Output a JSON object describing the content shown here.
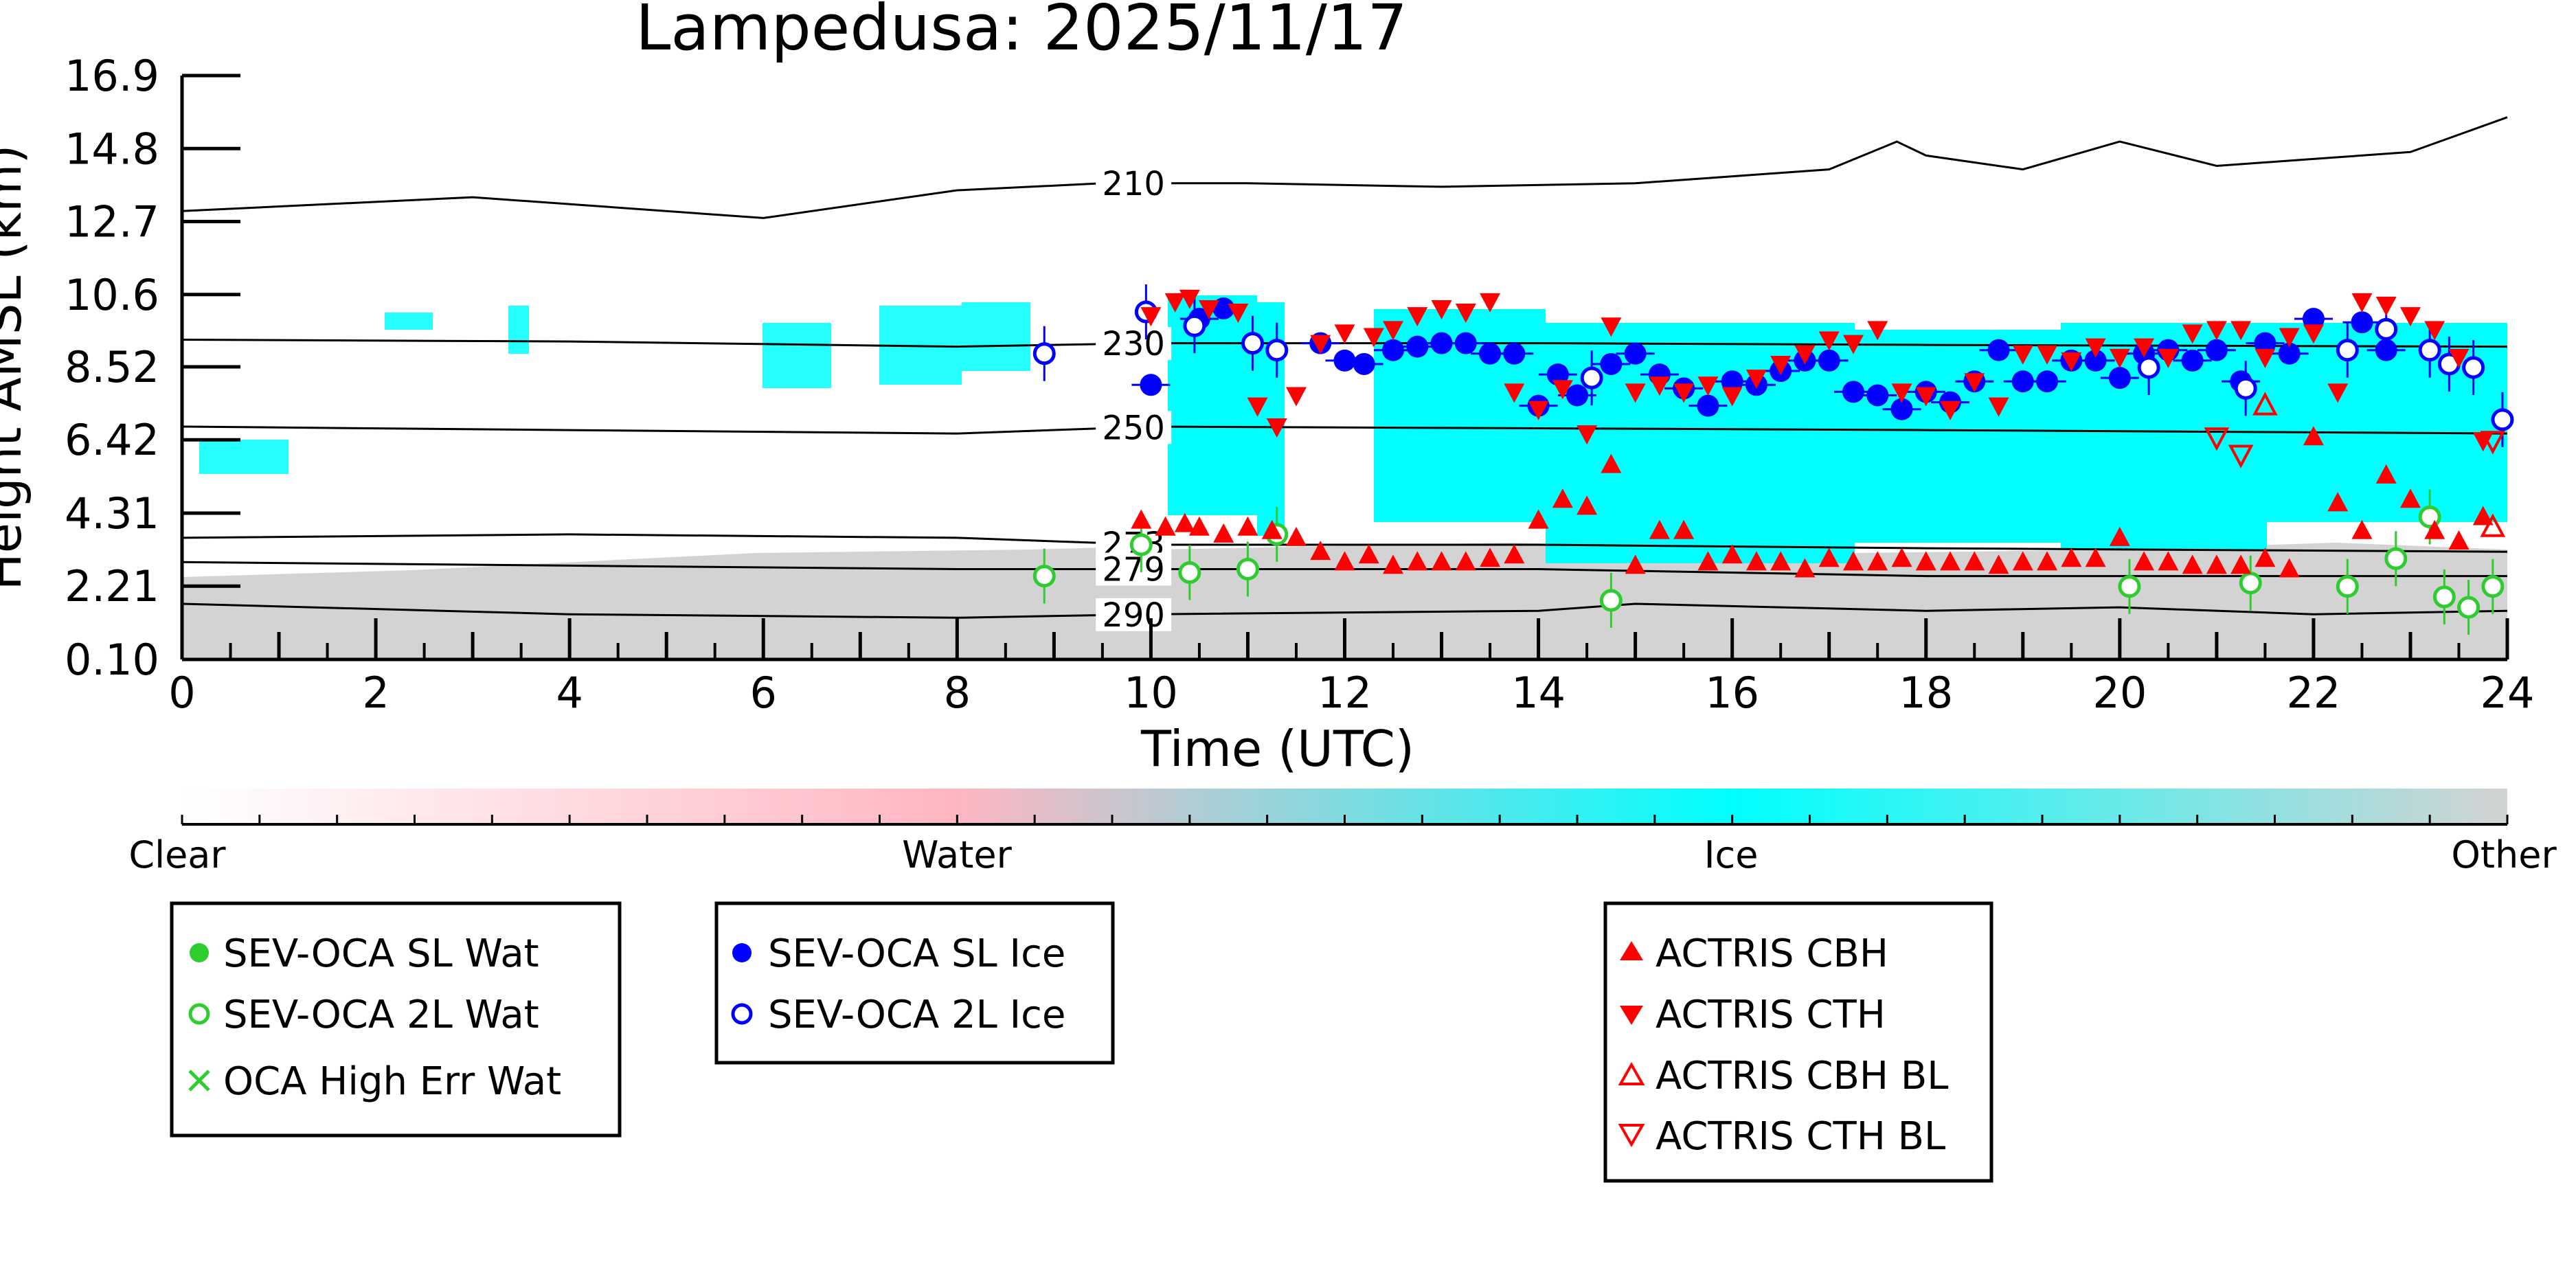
{
  "chart_data": {
    "type": "scatter",
    "title": "Lampedusa: 2025/11/17",
    "xlabel": "Time (UTC)",
    "ylabel": "Height AMSL (km)",
    "xlim": [
      0,
      24
    ],
    "ylim": [
      0.1,
      16.9
    ],
    "x_ticks": [
      0,
      2,
      4,
      6,
      8,
      10,
      12,
      14,
      16,
      18,
      20,
      22,
      24
    ],
    "y_ticks": [
      0.1,
      2.21,
      4.31,
      6.42,
      8.52,
      10.6,
      12.7,
      14.8,
      16.9
    ],
    "y_tick_labels": [
      "0.10",
      "2.21",
      "4.31",
      "6.42",
      "8.52",
      "10.6",
      "12.7",
      "14.8",
      "16.9"
    ],
    "grid": false,
    "contours": [
      {
        "label": "210",
        "x": [
          0,
          3,
          6,
          8,
          9.5,
          11,
          13,
          15,
          17,
          17.7,
          18,
          19,
          20,
          21,
          22,
          23,
          24
        ],
        "y": [
          13.0,
          13.4,
          12.8,
          13.6,
          13.8,
          13.8,
          13.7,
          13.8,
          14.2,
          15.0,
          14.6,
          14.2,
          15.0,
          14.3,
          14.5,
          14.7,
          15.7
        ]
      },
      {
        "label": "230",
        "x": [
          0,
          4,
          8,
          10,
          14,
          18,
          24
        ],
        "y": [
          9.3,
          9.25,
          9.1,
          9.2,
          9.2,
          9.15,
          9.1
        ]
      },
      {
        "label": "250",
        "x": [
          0,
          4,
          8,
          10,
          14,
          18,
          24
        ],
        "y": [
          6.8,
          6.7,
          6.6,
          6.8,
          6.75,
          6.7,
          6.6
        ]
      },
      {
        "label": "273",
        "x": [
          0,
          4,
          8,
          10,
          14,
          18,
          24
        ],
        "y": [
          3.6,
          3.7,
          3.6,
          3.4,
          3.4,
          3.3,
          3.2
        ]
      },
      {
        "label": "279",
        "x": [
          0,
          4,
          8,
          10,
          14,
          18,
          24
        ],
        "y": [
          2.9,
          2.8,
          2.7,
          2.7,
          2.7,
          2.5,
          2.5
        ]
      },
      {
        "label": "290",
        "x": [
          0,
          4,
          8,
          10,
          14,
          15,
          18,
          20,
          22,
          24
        ],
        "y": [
          1.7,
          1.4,
          1.3,
          1.4,
          1.5,
          1.7,
          1.5,
          1.6,
          1.4,
          1.5
        ]
      }
    ],
    "colorbar": {
      "labels": [
        "Clear",
        "Water",
        "Ice",
        "Other"
      ],
      "colors": [
        "#ffffff",
        "#ffb6c1",
        "#00ffff",
        "#d3d3d3"
      ]
    },
    "series": [
      {
        "name": "SEV-OCA SL Wat",
        "color": "#2ecc2e",
        "marker": "circle-filled",
        "x": [],
        "y": []
      },
      {
        "name": "SEV-OCA 2L Wat",
        "color": "#2ecc2e",
        "marker": "circle-open",
        "x": [
          8.9,
          9.9,
          10.4,
          11.0,
          11.3,
          14.75,
          20.1,
          21.35,
          22.35,
          22.85,
          23.2,
          23.35,
          23.6,
          23.85
        ],
        "y": [
          2.5,
          3.4,
          2.6,
          2.7,
          3.7,
          1.8,
          2.2,
          2.3,
          2.2,
          3.0,
          4.2,
          1.9,
          1.6,
          2.2
        ]
      },
      {
        "name": "OCA High Err Wat",
        "color": "#2ecc2e",
        "marker": "x",
        "x": [],
        "y": []
      },
      {
        "name": "SEV-OCA SL Ice",
        "color": "#0000ff",
        "marker": "circle-filled",
        "x": [
          10.0,
          10.5,
          10.75,
          11.75,
          12.0,
          12.2,
          12.5,
          12.75,
          13.0,
          13.25,
          13.5,
          13.75,
          14.0,
          14.2,
          14.4,
          14.75,
          15.0,
          15.25,
          15.5,
          15.75,
          16.0,
          16.25,
          16.5,
          16.75,
          17.0,
          17.25,
          17.5,
          17.75,
          18.0,
          18.25,
          18.5,
          18.75,
          19.0,
          19.25,
          19.5,
          19.75,
          20.0,
          20.25,
          20.5,
          20.75,
          21.0,
          21.25,
          21.5,
          21.75,
          22.0,
          22.5,
          22.75
        ],
        "y": [
          8.0,
          9.9,
          10.2,
          9.2,
          8.7,
          8.6,
          9.0,
          9.1,
          9.2,
          9.2,
          8.9,
          8.9,
          7.4,
          8.3,
          7.7,
          8.6,
          8.9,
          8.3,
          7.9,
          7.4,
          8.1,
          8.0,
          8.4,
          8.7,
          8.7,
          7.8,
          7.7,
          7.3,
          7.8,
          7.5,
          8.1,
          9.0,
          8.1,
          8.1,
          8.7,
          8.7,
          8.2,
          8.9,
          9.0,
          8.7,
          9.0,
          8.1,
          9.2,
          8.9,
          9.9,
          9.8,
          9.0
        ]
      },
      {
        "name": "SEV-OCA 2L Ice",
        "color": "#0000ff",
        "marker": "circle-open",
        "x": [
          8.9,
          9.95,
          10.45,
          11.05,
          11.3,
          14.55,
          20.3,
          21.3,
          22.35,
          22.75,
          23.2,
          23.4,
          23.65,
          23.95
        ],
        "y": [
          8.9,
          10.1,
          9.7,
          9.2,
          9.0,
          8.2,
          8.5,
          7.9,
          9.0,
          9.6,
          9.0,
          8.6,
          8.5,
          7.0
        ]
      },
      {
        "name": "ACTRIS CBH",
        "color": "#ff0000",
        "marker": "triangle-up-filled",
        "x": [
          9.9,
          10.15,
          10.35,
          10.5,
          10.75,
          11.0,
          11.25,
          11.5,
          11.75,
          12.0,
          12.25,
          12.5,
          12.75,
          13.0,
          13.25,
          13.5,
          13.75,
          14.0,
          14.25,
          14.5,
          14.75,
          15.0,
          15.25,
          15.5,
          15.75,
          16.0,
          16.25,
          16.5,
          16.75,
          17.0,
          17.25,
          17.5,
          17.75,
          18.0,
          18.25,
          18.5,
          18.75,
          19.0,
          19.25,
          19.5,
          19.75,
          20.0,
          20.25,
          20.5,
          20.75,
          21.0,
          21.25,
          21.5,
          21.75,
          22.0,
          22.25,
          22.5,
          22.75,
          23.0,
          23.25,
          23.5,
          23.75
        ],
        "y": [
          4.1,
          3.9,
          4.0,
          3.9,
          3.7,
          3.9,
          3.8,
          3.6,
          3.2,
          2.9,
          3.1,
          2.8,
          2.9,
          2.9,
          2.9,
          3.0,
          3.1,
          4.1,
          4.7,
          4.5,
          5.7,
          2.8,
          3.8,
          3.8,
          2.9,
          3.1,
          2.9,
          2.9,
          2.7,
          3.0,
          2.9,
          2.9,
          3.0,
          2.9,
          2.9,
          2.9,
          2.8,
          2.9,
          2.9,
          3.0,
          3.0,
          3.6,
          2.9,
          2.9,
          2.8,
          2.8,
          2.8,
          3.0,
          2.7,
          6.5,
          4.6,
          3.8,
          5.4,
          4.7,
          3.8,
          3.5,
          4.2
        ]
      },
      {
        "name": "ACTRIS CTH",
        "color": "#ff0000",
        "marker": "triangle-down-filled",
        "x": [
          10.0,
          10.25,
          10.4,
          10.6,
          10.9,
          11.1,
          11.3,
          11.5,
          11.75,
          12.0,
          12.3,
          12.5,
          12.75,
          13.0,
          13.25,
          13.5,
          13.75,
          14.0,
          14.25,
          14.5,
          14.75,
          15.0,
          15.25,
          15.5,
          15.75,
          16.0,
          16.25,
          16.5,
          16.75,
          17.0,
          17.25,
          17.5,
          17.75,
          18.0,
          18.25,
          18.5,
          18.75,
          19.0,
          19.25,
          19.5,
          19.75,
          20.0,
          20.25,
          20.5,
          20.75,
          21.0,
          21.25,
          21.5,
          21.75,
          22.0,
          22.25,
          22.5,
          22.75,
          23.0,
          23.25,
          23.5,
          23.75
        ],
        "y": [
          10.0,
          10.4,
          10.5,
          10.2,
          10.1,
          7.4,
          6.8,
          7.7,
          9.2,
          9.5,
          9.4,
          9.6,
          10.0,
          10.2,
          10.1,
          10.4,
          7.8,
          7.3,
          7.9,
          6.6,
          9.7,
          7.8,
          8.0,
          7.8,
          8.0,
          7.7,
          8.2,
          8.6,
          8.9,
          9.3,
          9.2,
          9.6,
          7.8,
          7.7,
          7.3,
          8.1,
          7.4,
          8.9,
          8.9,
          8.7,
          9.1,
          8.8,
          9.1,
          8.8,
          9.5,
          9.6,
          9.6,
          8.8,
          9.4,
          9.5,
          7.8,
          10.4,
          10.3,
          10.0,
          9.6,
          8.8,
          6.4
        ]
      },
      {
        "name": "ACTRIS CBH BL",
        "color": "#ff0000",
        "marker": "triangle-up-open",
        "x": [
          21.5,
          23.85
        ],
        "y": [
          7.4,
          3.9
        ]
      },
      {
        "name": "ACTRIS CTH BL",
        "color": "#ff0000",
        "marker": "triangle-down-open",
        "x": [
          21.0,
          21.25,
          23.85
        ],
        "y": [
          6.5,
          6.0,
          6.4
        ]
      }
    ]
  }
}
